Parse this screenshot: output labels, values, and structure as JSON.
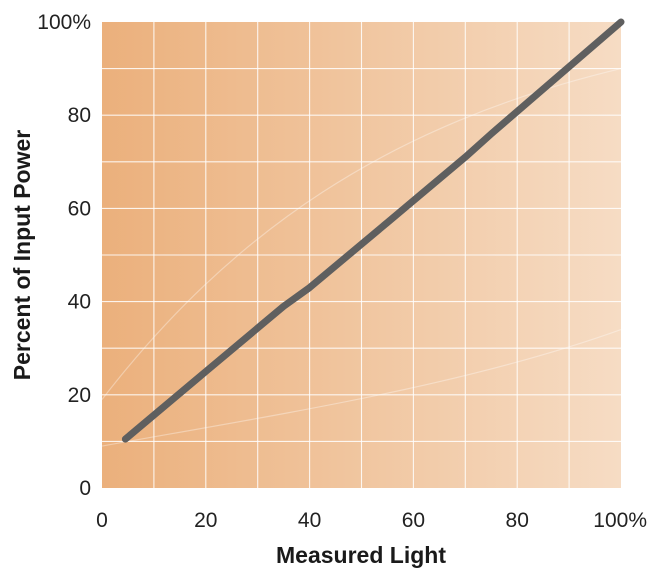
{
  "chart_data": {
    "type": "line",
    "xlabel": "Measured Light",
    "ylabel": "Percent of Input Power",
    "xlim": [
      0,
      100
    ],
    "ylim": [
      0,
      100
    ],
    "x_ticks": [
      "0",
      "20",
      "40",
      "60",
      "80",
      "100%"
    ],
    "y_ticks": [
      "0",
      "20",
      "40",
      "60",
      "80",
      "100%"
    ],
    "grid": true,
    "series": [
      {
        "x": [
          4.5,
          20,
          35,
          40,
          55,
          70,
          75,
          100
        ],
        "y": [
          10.5,
          25,
          39,
          43,
          57,
          71,
          76,
          100
        ]
      }
    ],
    "colors": {
      "line": "#5f5f5f",
      "background_left": "#ebb07c",
      "background_right": "#f6dcc4",
      "grid": "#ffffff"
    }
  }
}
